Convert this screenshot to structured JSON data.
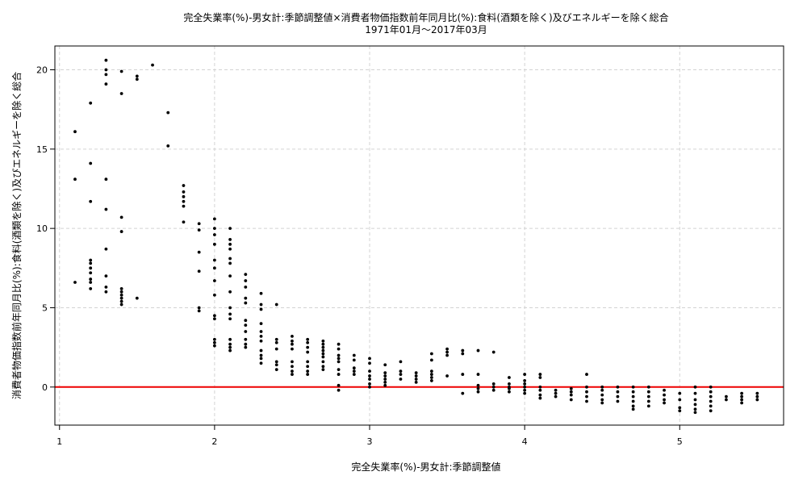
{
  "chart_data": {
    "type": "scatter",
    "title": "完全失業率(%)-男女計:季節調整値×消費者物価指数前年同月比(%):食料(酒類を除く)及びエネルギーを除く総合",
    "subtitle": "1971年01月～2017年03月",
    "xlabel": "完全失業率(%)-男女計:季節調整値",
    "ylabel": "消費者物価指数前年同月比(%):食料(酒類を除く)及びエネルギーを除く総合",
    "xlim": [
      0.97,
      5.67
    ],
    "ylim": [
      -2.4,
      21.5
    ],
    "x_ticks": [
      1,
      2,
      3,
      4,
      5
    ],
    "y_ticks": [
      0,
      5,
      10,
      15,
      20
    ],
    "grid": true,
    "reference_line": {
      "y": 0,
      "color": "#ee0000"
    },
    "point_color": "#000000",
    "points": [
      [
        1.1,
        16.1
      ],
      [
        1.1,
        13.1
      ],
      [
        1.1,
        6.6
      ],
      [
        1.2,
        17.9
      ],
      [
        1.2,
        14.1
      ],
      [
        1.2,
        11.7
      ],
      [
        1.2,
        8.0
      ],
      [
        1.2,
        7.8
      ],
      [
        1.2,
        7.5
      ],
      [
        1.2,
        7.2
      ],
      [
        1.2,
        6.8
      ],
      [
        1.2,
        6.6
      ],
      [
        1.2,
        6.2
      ],
      [
        1.3,
        20.6
      ],
      [
        1.3,
        20.0
      ],
      [
        1.3,
        19.7
      ],
      [
        1.3,
        19.1
      ],
      [
        1.3,
        13.1
      ],
      [
        1.3,
        11.2
      ],
      [
        1.3,
        8.7
      ],
      [
        1.3,
        7.0
      ],
      [
        1.3,
        6.3
      ],
      [
        1.3,
        6.0
      ],
      [
        1.4,
        19.9
      ],
      [
        1.4,
        18.5
      ],
      [
        1.4,
        10.7
      ],
      [
        1.4,
        9.8
      ],
      [
        1.4,
        6.2
      ],
      [
        1.4,
        6.0
      ],
      [
        1.4,
        5.8
      ],
      [
        1.4,
        5.6
      ],
      [
        1.4,
        5.4
      ],
      [
        1.4,
        5.2
      ],
      [
        1.5,
        19.6
      ],
      [
        1.5,
        19.4
      ],
      [
        1.5,
        5.6
      ],
      [
        1.6,
        20.3
      ],
      [
        1.7,
        17.3
      ],
      [
        1.7,
        15.2
      ],
      [
        1.8,
        12.7
      ],
      [
        1.8,
        12.3
      ],
      [
        1.8,
        12.0
      ],
      [
        1.8,
        11.7
      ],
      [
        1.8,
        11.4
      ],
      [
        1.8,
        10.4
      ],
      [
        1.9,
        10.3
      ],
      [
        1.9,
        9.9
      ],
      [
        1.9,
        8.5
      ],
      [
        1.9,
        7.3
      ],
      [
        1.9,
        5.0
      ],
      [
        1.9,
        4.8
      ],
      [
        2.0,
        10.6
      ],
      [
        2.0,
        10.0
      ],
      [
        2.0,
        9.6
      ],
      [
        2.0,
        9.0
      ],
      [
        2.0,
        8.0
      ],
      [
        2.0,
        7.5
      ],
      [
        2.0,
        6.7
      ],
      [
        2.0,
        5.8
      ],
      [
        2.0,
        4.5
      ],
      [
        2.0,
        4.3
      ],
      [
        2.0,
        3.0
      ],
      [
        2.0,
        2.8
      ],
      [
        2.0,
        2.6
      ],
      [
        2.1,
        10.0
      ],
      [
        2.1,
        9.3
      ],
      [
        2.1,
        9.0
      ],
      [
        2.1,
        8.7
      ],
      [
        2.1,
        8.1
      ],
      [
        2.1,
        7.8
      ],
      [
        2.1,
        7.0
      ],
      [
        2.1,
        6.0
      ],
      [
        2.1,
        5.0
      ],
      [
        2.1,
        4.6
      ],
      [
        2.1,
        4.3
      ],
      [
        2.1,
        3.0
      ],
      [
        2.1,
        2.7
      ],
      [
        2.1,
        2.5
      ],
      [
        2.1,
        2.3
      ],
      [
        2.2,
        7.1
      ],
      [
        2.2,
        6.7
      ],
      [
        2.2,
        6.3
      ],
      [
        2.2,
        5.6
      ],
      [
        2.2,
        5.3
      ],
      [
        2.2,
        4.2
      ],
      [
        2.2,
        3.9
      ],
      [
        2.2,
        3.5
      ],
      [
        2.2,
        3.0
      ],
      [
        2.2,
        2.7
      ],
      [
        2.2,
        2.5
      ],
      [
        2.3,
        5.9
      ],
      [
        2.3,
        5.2
      ],
      [
        2.3,
        4.9
      ],
      [
        2.3,
        4.0
      ],
      [
        2.3,
        3.5
      ],
      [
        2.3,
        3.2
      ],
      [
        2.3,
        2.9
      ],
      [
        2.3,
        2.3
      ],
      [
        2.3,
        2.0
      ],
      [
        2.3,
        1.8
      ],
      [
        2.3,
        1.5
      ],
      [
        2.4,
        5.2
      ],
      [
        2.4,
        3.0
      ],
      [
        2.4,
        2.8
      ],
      [
        2.4,
        2.4
      ],
      [
        2.4,
        1.6
      ],
      [
        2.4,
        1.4
      ],
      [
        2.4,
        1.1
      ],
      [
        2.5,
        3.2
      ],
      [
        2.5,
        2.9
      ],
      [
        2.5,
        2.7
      ],
      [
        2.5,
        2.4
      ],
      [
        2.5,
        1.6
      ],
      [
        2.5,
        1.3
      ],
      [
        2.5,
        1.0
      ],
      [
        2.5,
        0.8
      ],
      [
        2.6,
        3.0
      ],
      [
        2.6,
        2.8
      ],
      [
        2.6,
        2.5
      ],
      [
        2.6,
        2.2
      ],
      [
        2.6,
        1.6
      ],
      [
        2.6,
        1.3
      ],
      [
        2.6,
        1.0
      ],
      [
        2.6,
        0.8
      ],
      [
        2.7,
        2.9
      ],
      [
        2.7,
        2.7
      ],
      [
        2.7,
        2.5
      ],
      [
        2.7,
        2.3
      ],
      [
        2.7,
        2.1
      ],
      [
        2.7,
        1.9
      ],
      [
        2.7,
        1.6
      ],
      [
        2.7,
        1.3
      ],
      [
        2.7,
        1.1
      ],
      [
        2.8,
        2.7
      ],
      [
        2.8,
        2.4
      ],
      [
        2.8,
        2.0
      ],
      [
        2.8,
        1.8
      ],
      [
        2.8,
        1.6
      ],
      [
        2.8,
        1.1
      ],
      [
        2.8,
        0.8
      ],
      [
        2.8,
        0.1
      ],
      [
        2.8,
        -0.2
      ],
      [
        2.9,
        2.0
      ],
      [
        2.9,
        1.7
      ],
      [
        2.9,
        1.2
      ],
      [
        2.9,
        1.0
      ],
      [
        2.9,
        0.8
      ],
      [
        3.0,
        1.8
      ],
      [
        3.0,
        1.5
      ],
      [
        3.0,
        1.0
      ],
      [
        3.0,
        0.7
      ],
      [
        3.0,
        0.5
      ],
      [
        3.0,
        0.2
      ],
      [
        3.0,
        0.0
      ],
      [
        3.1,
        1.4
      ],
      [
        3.1,
        0.9
      ],
      [
        3.1,
        0.7
      ],
      [
        3.1,
        0.5
      ],
      [
        3.1,
        0.3
      ],
      [
        3.1,
        0.1
      ],
      [
        3.2,
        1.6
      ],
      [
        3.2,
        1.0
      ],
      [
        3.2,
        0.8
      ],
      [
        3.2,
        0.5
      ],
      [
        3.3,
        0.9
      ],
      [
        3.3,
        0.7
      ],
      [
        3.3,
        0.5
      ],
      [
        3.3,
        0.3
      ],
      [
        3.4,
        2.1
      ],
      [
        3.4,
        1.7
      ],
      [
        3.4,
        1.0
      ],
      [
        3.4,
        0.8
      ],
      [
        3.4,
        0.6
      ],
      [
        3.4,
        0.4
      ],
      [
        3.5,
        2.4
      ],
      [
        3.5,
        2.2
      ],
      [
        3.5,
        2.0
      ],
      [
        3.5,
        0.7
      ],
      [
        3.6,
        2.3
      ],
      [
        3.6,
        2.1
      ],
      [
        3.6,
        0.8
      ],
      [
        3.6,
        -0.4
      ],
      [
        3.7,
        2.3
      ],
      [
        3.7,
        0.8
      ],
      [
        3.7,
        0.1
      ],
      [
        3.7,
        -0.1
      ],
      [
        3.7,
        -0.3
      ],
      [
        3.8,
        2.2
      ],
      [
        3.8,
        0.2
      ],
      [
        3.8,
        0.0
      ],
      [
        3.8,
        -0.2
      ],
      [
        3.9,
        0.6
      ],
      [
        3.9,
        0.2
      ],
      [
        3.9,
        0.0
      ],
      [
        3.9,
        -0.1
      ],
      [
        3.9,
        -0.3
      ],
      [
        4.0,
        0.8
      ],
      [
        4.0,
        0.4
      ],
      [
        4.0,
        0.2
      ],
      [
        4.0,
        0.0
      ],
      [
        4.0,
        -0.2
      ],
      [
        4.0,
        -0.4
      ],
      [
        4.1,
        0.8
      ],
      [
        4.1,
        0.6
      ],
      [
        4.1,
        0.0
      ],
      [
        4.1,
        -0.2
      ],
      [
        4.1,
        -0.5
      ],
      [
        4.1,
        -0.7
      ],
      [
        4.2,
        -0.2
      ],
      [
        4.2,
        -0.4
      ],
      [
        4.2,
        -0.6
      ],
      [
        4.3,
        -0.1
      ],
      [
        4.3,
        -0.3
      ],
      [
        4.3,
        -0.5
      ],
      [
        4.3,
        -0.8
      ],
      [
        4.4,
        0.8
      ],
      [
        4.4,
        0.0
      ],
      [
        4.4,
        -0.3
      ],
      [
        4.4,
        -0.6
      ],
      [
        4.4,
        -0.9
      ],
      [
        4.5,
        0.0
      ],
      [
        4.5,
        -0.2
      ],
      [
        4.5,
        -0.5
      ],
      [
        4.5,
        -0.8
      ],
      [
        4.5,
        -1.0
      ],
      [
        4.6,
        0.0
      ],
      [
        4.6,
        -0.3
      ],
      [
        4.6,
        -0.6
      ],
      [
        4.6,
        -0.9
      ],
      [
        4.7,
        0.0
      ],
      [
        4.7,
        -0.3
      ],
      [
        4.7,
        -0.6
      ],
      [
        4.7,
        -0.9
      ],
      [
        4.7,
        -1.2
      ],
      [
        4.7,
        -1.4
      ],
      [
        4.8,
        0.0
      ],
      [
        4.8,
        -0.3
      ],
      [
        4.8,
        -0.6
      ],
      [
        4.8,
        -0.9
      ],
      [
        4.8,
        -1.2
      ],
      [
        4.9,
        -0.2
      ],
      [
        4.9,
        -0.5
      ],
      [
        4.9,
        -0.8
      ],
      [
        4.9,
        -1.0
      ],
      [
        5.0,
        -0.4
      ],
      [
        5.0,
        -0.8
      ],
      [
        5.0,
        -1.3
      ],
      [
        5.0,
        -1.5
      ],
      [
        5.1,
        0.0
      ],
      [
        5.1,
        -0.4
      ],
      [
        5.1,
        -0.8
      ],
      [
        5.1,
        -1.1
      ],
      [
        5.1,
        -1.4
      ],
      [
        5.1,
        -1.6
      ],
      [
        5.2,
        0.0
      ],
      [
        5.2,
        -0.3
      ],
      [
        5.2,
        -0.6
      ],
      [
        5.2,
        -0.9
      ],
      [
        5.2,
        -1.2
      ],
      [
        5.2,
        -1.5
      ],
      [
        5.3,
        -0.6
      ],
      [
        5.3,
        -0.8
      ],
      [
        5.4,
        -0.4
      ],
      [
        5.4,
        -0.6
      ],
      [
        5.4,
        -0.8
      ],
      [
        5.4,
        -1.0
      ],
      [
        5.5,
        -0.4
      ],
      [
        5.5,
        -0.6
      ],
      [
        5.5,
        -0.8
      ]
    ]
  }
}
